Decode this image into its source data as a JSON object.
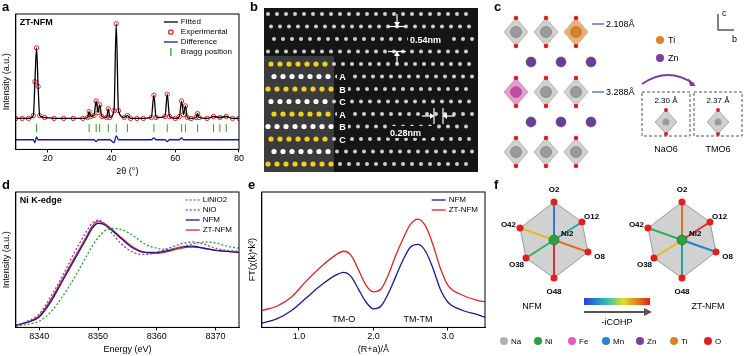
{
  "chart_data": [
    {
      "panel": "a",
      "type": "line",
      "title": "ZT-NFM",
      "x_label": "2θ (°)",
      "y_label": "Intensity (a.u.)",
      "x": [
        10,
        12,
        14,
        15.5,
        16,
        16.5,
        17,
        17.5,
        19,
        22,
        25,
        28,
        31,
        32.5,
        33,
        33.5,
        34.5,
        35.2,
        35.8,
        36.3,
        37,
        38.5,
        39,
        39.5,
        40.8,
        41.5,
        42.2,
        44,
        45,
        46,
        48,
        50,
        52.5,
        53.3,
        54,
        56.8,
        57.5,
        58.2,
        60,
        61.3,
        62,
        62.6,
        63.2,
        63.8,
        65,
        66.5,
        67,
        67.5,
        70,
        72,
        74,
        76,
        78,
        80
      ],
      "series": [
        {
          "name": "Fitted",
          "color": "#000000",
          "line_style": "solid",
          "values": [
            0.02,
            0.02,
            0.02,
            0.05,
            0.4,
            0.75,
            0.35,
            0.05,
            0.03,
            0.02,
            0.02,
            0.02,
            0.02,
            0.03,
            0.09,
            0.04,
            0.05,
            0.2,
            0.08,
            0.16,
            0.04,
            0.03,
            0.12,
            0.03,
            0.1,
            1.0,
            0.1,
            0.03,
            0.05,
            0.02,
            0.02,
            0.02,
            0.03,
            0.26,
            0.03,
            0.04,
            0.27,
            0.04,
            0.02,
            0.04,
            0.2,
            0.06,
            0.15,
            0.03,
            0.02,
            0.03,
            0.07,
            0.03,
            0.02,
            0.04,
            0.03,
            0.04,
            0.02,
            0.02
          ]
        },
        {
          "name": "Experimental",
          "type": "scatter",
          "marker": "circle",
          "color": "#e8262a",
          "values": [
            0.02,
            0.02,
            0.02,
            0.05,
            0.4,
            0.75,
            0.35,
            0.05,
            0.03,
            0.02,
            0.02,
            0.02,
            0.02,
            0.03,
            0.09,
            0.04,
            0.05,
            0.2,
            0.08,
            0.16,
            0.04,
            0.03,
            0.12,
            0.03,
            0.1,
            1.0,
            0.1,
            0.03,
            0.05,
            0.02,
            0.02,
            0.02,
            0.03,
            0.26,
            0.03,
            0.04,
            0.27,
            0.04,
            0.02,
            0.04,
            0.2,
            0.06,
            0.15,
            0.03,
            0.02,
            0.03,
            0.07,
            0.03,
            0.02,
            0.04,
            0.03,
            0.04,
            0.02,
            0.02
          ]
        },
        {
          "name": "Difference",
          "color": "#1a1aa6",
          "line_style": "solid",
          "values": [
            -0.2,
            -0.2,
            -0.2,
            -0.2,
            -0.23,
            -0.17,
            -0.2,
            -0.2,
            -0.2,
            -0.2,
            -0.2,
            -0.2,
            -0.2,
            -0.2,
            -0.2,
            -0.2,
            -0.2,
            -0.22,
            -0.2,
            -0.2,
            -0.2,
            -0.2,
            -0.2,
            -0.2,
            -0.23,
            -0.16,
            -0.2,
            -0.2,
            -0.2,
            -0.2,
            -0.2,
            -0.2,
            -0.2,
            -0.18,
            -0.2,
            -0.2,
            -0.22,
            -0.2,
            -0.2,
            -0.2,
            -0.18,
            -0.2,
            -0.2,
            -0.2,
            -0.2,
            -0.2,
            -0.2,
            -0.2,
            -0.2,
            -0.2,
            -0.2,
            -0.2,
            -0.2,
            -0.2
          ]
        },
        {
          "name": "Bragg position",
          "type": "scatter",
          "marker": "vline",
          "color": "#2ca02c",
          "x": [
            16.5,
            33,
            35.2,
            36.3,
            39,
            41.5,
            45,
            53.3,
            57.5,
            62,
            63.2,
            67,
            72,
            74,
            76
          ],
          "values": [
            -0.08,
            -0.08,
            -0.08,
            -0.08,
            -0.08,
            -0.08,
            -0.08,
            -0.08,
            -0.08,
            -0.08,
            -0.08,
            -0.08,
            -0.08,
            -0.08,
            -0.08
          ]
        }
      ],
      "xlim": [
        10,
        80
      ],
      "xticks": [
        20,
        40,
        60,
        80
      ],
      "ylim": [
        -0.3,
        1.1
      ],
      "tick_labels": "x",
      "grid": false,
      "legend": "top right"
    },
    {
      "panel": "d",
      "type": "line",
      "title": "Ni K-edge",
      "x_label": "Energy (eV)",
      "y_label": "Intensity (a.u.)",
      "x": [
        8336,
        8338,
        8340,
        8342,
        8344,
        8346,
        8348,
        8349,
        8350,
        8351,
        8352,
        8354,
        8356,
        8358,
        8360,
        8362,
        8364,
        8366,
        8368,
        8370,
        8372,
        8374
      ],
      "series": [
        {
          "name": "LiNiO2",
          "color": "#2ca02c",
          "line_style": "dotted",
          "values": [
            0.01,
            0.03,
            0.06,
            0.15,
            0.3,
            0.48,
            0.68,
            0.78,
            0.86,
            0.92,
            0.95,
            0.94,
            0.88,
            0.8,
            0.76,
            0.75,
            0.77,
            0.8,
            0.82,
            0.81,
            0.78,
            0.76
          ]
        },
        {
          "name": "NiO",
          "color": "#8e3bb8",
          "line_style": "dotted",
          "values": [
            0.02,
            0.06,
            0.13,
            0.3,
            0.5,
            0.72,
            0.92,
            1.0,
            1.03,
            1.0,
            0.93,
            0.8,
            0.72,
            0.7,
            0.72,
            0.76,
            0.8,
            0.82,
            0.8,
            0.76,
            0.74,
            0.73
          ]
        },
        {
          "name": "NFM",
          "color": "#1a1a8c",
          "line_style": "solid",
          "values": [
            0.02,
            0.05,
            0.1,
            0.25,
            0.45,
            0.65,
            0.85,
            0.95,
            1.0,
            0.99,
            0.95,
            0.85,
            0.76,
            0.72,
            0.72,
            0.74,
            0.77,
            0.78,
            0.76,
            0.74,
            0.73,
            0.72
          ]
        },
        {
          "name": "ZT-NFM",
          "color": "#d62728",
          "line_style": "solid",
          "values": [
            0.02,
            0.05,
            0.11,
            0.27,
            0.47,
            0.67,
            0.87,
            0.97,
            1.02,
            1.0,
            0.96,
            0.86,
            0.77,
            0.72,
            0.71,
            0.73,
            0.76,
            0.77,
            0.76,
            0.74,
            0.73,
            0.72
          ]
        }
      ],
      "xlim": [
        8336,
        8374
      ],
      "xticks": [
        8340,
        8350,
        8360,
        8370
      ],
      "ylim": [
        0,
        1.3
      ],
      "tick_labels": "x",
      "grid": false,
      "legend": "top right"
    },
    {
      "panel": "e",
      "type": "line",
      "x_label": "(R+a)/Å",
      "y_label": "FT(χ(k)*k³)",
      "x": [
        0.5,
        0.7,
        0.9,
        1.1,
        1.3,
        1.5,
        1.6,
        1.7,
        1.8,
        1.9,
        2.0,
        2.1,
        2.2,
        2.3,
        2.4,
        2.5,
        2.6,
        2.7,
        2.8,
        2.9,
        3.0,
        3.2,
        3.4,
        3.5
      ],
      "series": [
        {
          "name": "NFM",
          "color": "#1a1a8c",
          "line_style": "solid",
          "values": [
            0.05,
            0.1,
            0.2,
            0.35,
            0.5,
            0.62,
            0.65,
            0.6,
            0.45,
            0.3,
            0.22,
            0.25,
            0.4,
            0.6,
            0.8,
            0.95,
            0.98,
            0.9,
            0.7,
            0.45,
            0.3,
            0.2,
            0.15,
            0.12
          ]
        },
        {
          "name": "ZT-NFM",
          "color": "#d62728",
          "line_style": "solid",
          "values": [
            0.2,
            0.25,
            0.36,
            0.55,
            0.72,
            0.86,
            0.9,
            0.85,
            0.68,
            0.5,
            0.42,
            0.45,
            0.62,
            0.85,
            1.05,
            1.22,
            1.28,
            1.2,
            0.98,
            0.7,
            0.5,
            0.38,
            0.32,
            0.3
          ]
        }
      ],
      "annotations": [
        {
          "text": "TM-O",
          "x": 1.6
        },
        {
          "text": "TM-TM",
          "x": 2.6
        }
      ],
      "xlim": [
        0.5,
        3.5
      ],
      "xticks": [
        {
          "value": 1,
          "label": "1.0"
        },
        {
          "value": 2,
          "label": "2.0"
        },
        {
          "value": 3,
          "label": "3.0"
        }
      ],
      "ylim": [
        0,
        1.6
      ],
      "tick_labels": "x",
      "grid": false,
      "legend": "top right"
    }
  ],
  "panel_b": {
    "panel": "b",
    "spacings": [
      "0.54nm",
      "0.28nm"
    ],
    "stacking": [
      "A",
      "B",
      "C",
      "A",
      "B",
      "C"
    ]
  },
  "panel_c": {
    "panel": "c",
    "distances": [
      "2.108Å",
      "3.288Å"
    ],
    "substitution": [
      "Ti",
      "Zn"
    ],
    "axes": [
      "c",
      "b"
    ],
    "polyhedra": [
      {
        "bond": "2.30 Å",
        "name": "NaO6"
      },
      {
        "bond": "2.37 Å",
        "name": "TMO6"
      }
    ]
  },
  "panel_f": {
    "panel": "f",
    "structures": [
      {
        "caption": "NFM",
        "center": "Ni2",
        "ligands": [
          "O2",
          "O12",
          "O42",
          "O8",
          "O38",
          "O48"
        ]
      },
      {
        "caption": "ZT-NFM",
        "center": "Ni2",
        "ligands": [
          "O2",
          "O12",
          "O42",
          "O8",
          "O38",
          "O48"
        ]
      }
    ],
    "colorbar_label": "-iCOHP",
    "elements": [
      {
        "symbol": "Na",
        "color": "#b0b0b0"
      },
      {
        "symbol": "Ni",
        "color": "#2e9e3e"
      },
      {
        "symbol": "Fe",
        "color": "#e05cc8"
      },
      {
        "symbol": "Mn",
        "color": "#2a7fd4"
      },
      {
        "symbol": "Zn",
        "color": "#7a3fa0"
      },
      {
        "symbol": "Ti",
        "color": "#d9822b"
      },
      {
        "symbol": "O",
        "color": "#e02020"
      }
    ]
  }
}
